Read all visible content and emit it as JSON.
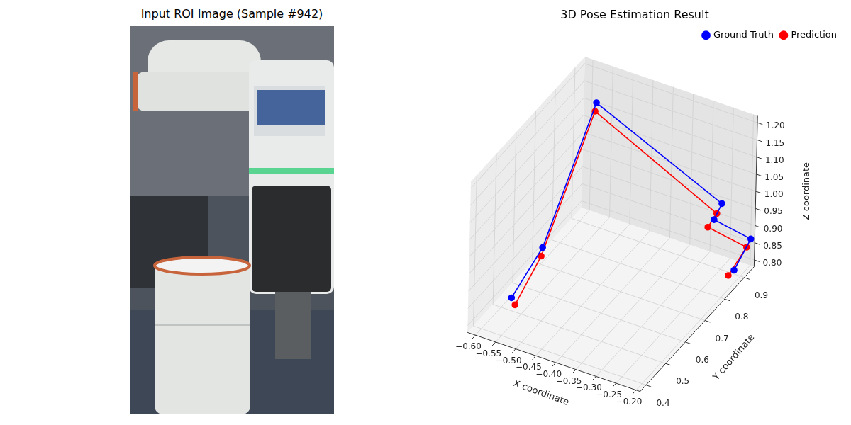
{
  "image_panel": {
    "title": "Input ROI Image (Sample #942)"
  },
  "chart_data": {
    "type": "scatter3d",
    "title": "3D Pose Estimation Result",
    "x_label": "X coordinate",
    "y_label": "Y coordinate",
    "z_label": "Z coordinate",
    "xlim": [
      -0.62,
      -0.19
    ],
    "xticks": [
      {
        "value": -0.6,
        "label": "−0.60"
      },
      {
        "value": -0.55,
        "label": "−0.55"
      },
      {
        "value": -0.5,
        "label": "−0.50"
      },
      {
        "value": -0.45,
        "label": "−0.45"
      },
      {
        "value": -0.4,
        "label": "−0.40"
      },
      {
        "value": -0.35,
        "label": "−0.35"
      },
      {
        "value": -0.3,
        "label": "−0.30"
      },
      {
        "value": -0.25,
        "label": "−0.25"
      },
      {
        "value": -0.2,
        "label": "−0.20"
      }
    ],
    "ylim": [
      0.37,
      0.95
    ],
    "yticks": [
      0.4,
      0.5,
      0.6,
      0.7,
      0.8,
      0.9
    ],
    "zlim": [
      0.78,
      1.22
    ],
    "zticks": [
      {
        "value": 0.8,
        "label": "0.80"
      },
      {
        "value": 0.85,
        "label": "0.85"
      },
      {
        "value": 0.9,
        "label": "0.90"
      },
      {
        "value": 0.95,
        "label": "0.95"
      },
      {
        "value": 1.0,
        "label": "1.00"
      },
      {
        "value": 1.05,
        "label": "1.05"
      },
      {
        "value": 1.1,
        "label": "1.10"
      },
      {
        "value": 1.15,
        "label": "1.15"
      },
      {
        "value": 1.2,
        "label": "1.20"
      }
    ],
    "grid": true,
    "legend": "upper right",
    "series": [
      {
        "name": "Ground Truth",
        "color": "#0000ff",
        "marker": "circle",
        "line_style": "solid",
        "x": [
          -0.568,
          -0.494,
          -0.531,
          -0.25,
          -0.267,
          -0.194,
          -0.203
        ],
        "y": [
          0.486,
          0.486,
          0.828,
          0.901,
          0.898,
          0.938,
          0.873
        ],
        "z": [
          0.829,
          1.005,
          1.198,
          0.971,
          0.919,
          0.867,
          0.813
        ]
      },
      {
        "name": "Prediction",
        "color": "#ff0000",
        "marker": "circle",
        "line_style": "solid",
        "x": [
          -0.559,
          -0.497,
          -0.534,
          -0.262,
          -0.282,
          -0.204,
          -0.217
        ],
        "y": [
          0.486,
          0.486,
          0.828,
          0.901,
          0.898,
          0.938,
          0.873
        ],
        "z": [
          0.812,
          0.979,
          1.172,
          0.937,
          0.891,
          0.839,
          0.792
        ]
      }
    ]
  }
}
